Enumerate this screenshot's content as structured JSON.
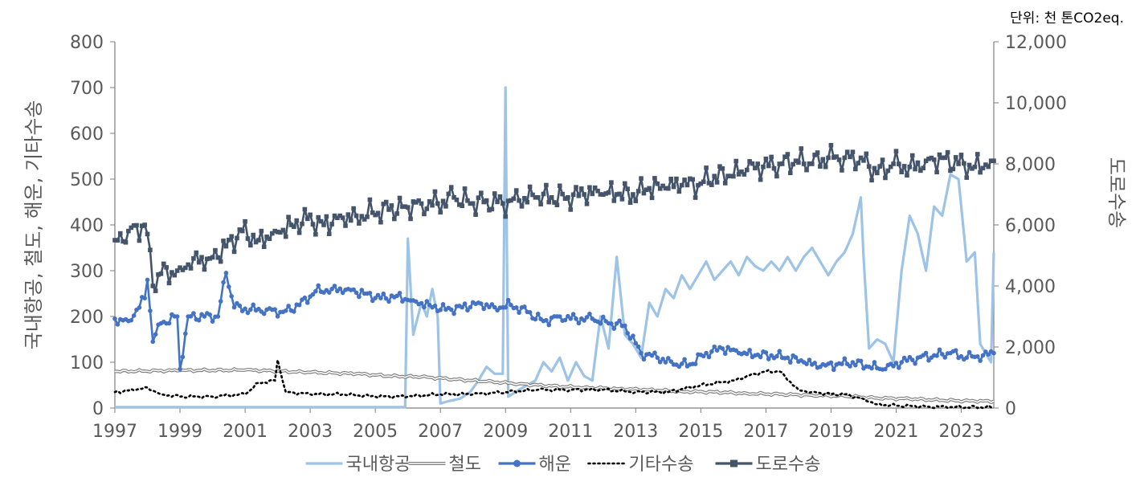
{
  "unit_note": "단위: 천 톤CO2eq.",
  "colors": {
    "domestic_aviation": "#9DC3E6",
    "rail": "#7F7F7F",
    "shipping": "#4472C4",
    "other": "#000000",
    "road": "#44546A",
    "axis_text": "#595959",
    "axis_line": "#7F7F7F"
  },
  "chart_data": {
    "type": "line",
    "x_start": "1997-01",
    "x_step": "month",
    "y_left": {
      "label": "국내항공, 철도, 해운, 기타수송",
      "range": [
        0,
        800
      ],
      "ticks": [
        "0",
        "100",
        "200",
        "300",
        "400",
        "500",
        "600",
        "700",
        "800"
      ]
    },
    "y_right": {
      "label": "도로수송",
      "range": [
        0,
        12000
      ],
      "ticks": [
        "0",
        "2,000",
        "4,000",
        "6,000",
        "8,000",
        "10,000",
        "12,000"
      ]
    },
    "x_ticks": [
      "1997",
      "1999",
      "2001",
      "2003",
      "2005",
      "2007",
      "2009",
      "2011",
      "2013",
      "2015",
      "2017",
      "2019",
      "2021",
      "2023"
    ],
    "legend_position": "bottom",
    "series": [
      {
        "key": "domestic_aviation",
        "name": "국내항공",
        "axis": "left",
        "style": "solid",
        "anchors": [
          [
            "1997-01",
            2
          ],
          [
            "2005-12",
            2
          ],
          [
            "2006-01",
            370
          ],
          [
            "2006-03",
            160
          ],
          [
            "2006-06",
            230
          ],
          [
            "2006-08",
            200
          ],
          [
            "2006-10",
            260
          ],
          [
            "2006-12",
            200
          ],
          [
            "2007-01",
            10
          ],
          [
            "2007-04",
            15
          ],
          [
            "2007-08",
            20
          ],
          [
            "2007-12",
            35
          ],
          [
            "2008-03",
            60
          ],
          [
            "2008-06",
            90
          ],
          [
            "2008-09",
            75
          ],
          [
            "2008-12",
            75
          ],
          [
            "2009-01",
            700
          ],
          [
            "2009-02",
            25
          ],
          [
            "2009-06",
            40
          ],
          [
            "2009-09",
            50
          ],
          [
            "2009-12",
            60
          ],
          [
            "2010-03",
            100
          ],
          [
            "2010-06",
            80
          ],
          [
            "2010-09",
            110
          ],
          [
            "2010-12",
            60
          ],
          [
            "2011-03",
            100
          ],
          [
            "2011-06",
            70
          ],
          [
            "2011-09",
            60
          ],
          [
            "2011-12",
            200
          ],
          [
            "2012-03",
            130
          ],
          [
            "2012-06",
            330
          ],
          [
            "2012-09",
            160
          ],
          [
            "2012-12",
            140
          ],
          [
            "2013-03",
            110
          ],
          [
            "2013-06",
            230
          ],
          [
            "2013-09",
            200
          ],
          [
            "2013-12",
            260
          ],
          [
            "2014-03",
            240
          ],
          [
            "2014-06",
            290
          ],
          [
            "2014-09",
            260
          ],
          [
            "2014-12",
            290
          ],
          [
            "2015-03",
            320
          ],
          [
            "2015-06",
            280
          ],
          [
            "2015-09",
            300
          ],
          [
            "2015-12",
            320
          ],
          [
            "2016-03",
            290
          ],
          [
            "2016-06",
            330
          ],
          [
            "2016-09",
            310
          ],
          [
            "2016-12",
            300
          ],
          [
            "2017-03",
            320
          ],
          [
            "2017-06",
            300
          ],
          [
            "2017-09",
            330
          ],
          [
            "2017-12",
            300
          ],
          [
            "2018-03",
            330
          ],
          [
            "2018-06",
            350
          ],
          [
            "2018-09",
            320
          ],
          [
            "2018-12",
            290
          ],
          [
            "2019-03",
            320
          ],
          [
            "2019-06",
            340
          ],
          [
            "2019-09",
            380
          ],
          [
            "2019-12",
            460
          ],
          [
            "2020-01",
            330
          ],
          [
            "2020-03",
            130
          ],
          [
            "2020-06",
            150
          ],
          [
            "2020-09",
            140
          ],
          [
            "2020-12",
            100
          ],
          [
            "2021-03",
            300
          ],
          [
            "2021-06",
            420
          ],
          [
            "2021-09",
            380
          ],
          [
            "2021-12",
            300
          ],
          [
            "2022-03",
            440
          ],
          [
            "2022-06",
            420
          ],
          [
            "2022-09",
            510
          ],
          [
            "2022-12",
            500
          ],
          [
            "2023-03",
            320
          ],
          [
            "2023-06",
            340
          ],
          [
            "2023-08",
            140
          ],
          [
            "2023-10",
            120
          ],
          [
            "2023-12",
            100
          ],
          [
            "2024-01",
            340
          ]
        ]
      },
      {
        "key": "rail",
        "name": "철도",
        "axis": "left",
        "style": "double",
        "anchors": [
          [
            "1997-01",
            80
          ],
          [
            "1999-01",
            82
          ],
          [
            "2001-01",
            83
          ],
          [
            "2003-01",
            78
          ],
          [
            "2004-06",
            75
          ],
          [
            "2005-06",
            70
          ],
          [
            "2006-06",
            68
          ],
          [
            "2007-06",
            63
          ],
          [
            "2008-06",
            58
          ],
          [
            "2009-06",
            53
          ],
          [
            "2010-06",
            48
          ],
          [
            "2011-06",
            45
          ],
          [
            "2012-06",
            42
          ],
          [
            "2013-06",
            40
          ],
          [
            "2014-06",
            36
          ],
          [
            "2015-06",
            35
          ],
          [
            "2016-06",
            32
          ],
          [
            "2017-06",
            30
          ],
          [
            "2018-06",
            28
          ],
          [
            "2019-06",
            26
          ],
          [
            "2020-06",
            22
          ],
          [
            "2021-06",
            20
          ],
          [
            "2022-06",
            17
          ],
          [
            "2023-06",
            15
          ],
          [
            "2024-01",
            15
          ]
        ]
      },
      {
        "key": "shipping",
        "name": "해운",
        "axis": "left",
        "style": "marker",
        "anchors": [
          [
            "1997-01",
            195
          ],
          [
            "1997-06",
            190
          ],
          [
            "1997-12",
            240
          ],
          [
            "1998-01",
            280
          ],
          [
            "1998-03",
            145
          ],
          [
            "1998-06",
            185
          ],
          [
            "1998-12",
            200
          ],
          [
            "1999-01",
            85
          ],
          [
            "1999-04",
            200
          ],
          [
            "1999-10",
            200
          ],
          [
            "2000-03",
            200
          ],
          [
            "2000-06",
            295
          ],
          [
            "2000-09",
            220
          ],
          [
            "2001-03",
            215
          ],
          [
            "2001-09",
            215
          ],
          [
            "2002-03",
            210
          ],
          [
            "2002-09",
            225
          ],
          [
            "2003-03",
            255
          ],
          [
            "2003-09",
            260
          ],
          [
            "2004-03",
            260
          ],
          [
            "2004-09",
            250
          ],
          [
            "2005-03",
            240
          ],
          [
            "2005-09",
            245
          ],
          [
            "2006-03",
            235
          ],
          [
            "2006-09",
            225
          ],
          [
            "2007-03",
            215
          ],
          [
            "2007-09",
            220
          ],
          [
            "2008-03",
            230
          ],
          [
            "2008-09",
            220
          ],
          [
            "2009-03",
            225
          ],
          [
            "2009-09",
            210
          ],
          [
            "2010-03",
            190
          ],
          [
            "2010-09",
            200
          ],
          [
            "2011-03",
            195
          ],
          [
            "2011-09",
            195
          ],
          [
            "2012-03",
            185
          ],
          [
            "2012-09",
            180
          ],
          [
            "2013-03",
            120
          ],
          [
            "2013-09",
            110
          ],
          [
            "2014-03",
            95
          ],
          [
            "2014-09",
            95
          ],
          [
            "2015-03",
            120
          ],
          [
            "2015-09",
            130
          ],
          [
            "2016-03",
            120
          ],
          [
            "2016-09",
            115
          ],
          [
            "2017-03",
            115
          ],
          [
            "2017-09",
            110
          ],
          [
            "2018-03",
            100
          ],
          [
            "2018-09",
            90
          ],
          [
            "2019-03",
            95
          ],
          [
            "2019-09",
            100
          ],
          [
            "2020-03",
            90
          ],
          [
            "2020-09",
            85
          ],
          [
            "2021-03",
            100
          ],
          [
            "2021-09",
            110
          ],
          [
            "2022-03",
            115
          ],
          [
            "2022-09",
            120
          ],
          [
            "2023-03",
            110
          ],
          [
            "2023-09",
            115
          ],
          [
            "2024-01",
            120
          ]
        ]
      },
      {
        "key": "other",
        "name": "기타수송",
        "axis": "left",
        "style": "dotted",
        "anchors": [
          [
            "1997-01",
            35
          ],
          [
            "1997-09",
            40
          ],
          [
            "1998-01",
            45
          ],
          [
            "1998-06",
            30
          ],
          [
            "1999-01",
            25
          ],
          [
            "2000-01",
            25
          ],
          [
            "2001-01",
            30
          ],
          [
            "2001-06",
            55
          ],
          [
            "2001-12",
            60
          ],
          [
            "2002-01",
            105
          ],
          [
            "2002-04",
            35
          ],
          [
            "2003-01",
            30
          ],
          [
            "2004-01",
            30
          ],
          [
            "2005-01",
            25
          ],
          [
            "2006-01",
            25
          ],
          [
            "2007-01",
            30
          ],
          [
            "2008-01",
            30
          ],
          [
            "2009-01",
            35
          ],
          [
            "2010-01",
            40
          ],
          [
            "2011-01",
            40
          ],
          [
            "2012-01",
            40
          ],
          [
            "2013-01",
            35
          ],
          [
            "2014-01",
            35
          ],
          [
            "2015-01",
            50
          ],
          [
            "2016-01",
            60
          ],
          [
            "2016-06",
            70
          ],
          [
            "2017-01",
            80
          ],
          [
            "2017-06",
            80
          ],
          [
            "2018-01",
            40
          ],
          [
            "2018-06",
            35
          ],
          [
            "2019-01",
            30
          ],
          [
            "2019-06",
            30
          ],
          [
            "2020-01",
            20
          ],
          [
            "2020-06",
            8
          ],
          [
            "2021-01",
            5
          ],
          [
            "2022-01",
            3
          ],
          [
            "2023-01",
            2
          ],
          [
            "2024-01",
            2
          ]
        ]
      },
      {
        "key": "road",
        "name": "도로수송",
        "axis": "right",
        "style": "marker-square",
        "anchors": [
          [
            "1997-01",
            5500
          ],
          [
            "1997-06",
            5800
          ],
          [
            "1997-12",
            6000
          ],
          [
            "1998-01",
            5700
          ],
          [
            "1998-03",
            4000
          ],
          [
            "1998-06",
            4400
          ],
          [
            "1998-12",
            4500
          ],
          [
            "1999-01",
            4600
          ],
          [
            "1999-06",
            4900
          ],
          [
            "1999-12",
            4900
          ],
          [
            "2000-06",
            5300
          ],
          [
            "2000-12",
            5800
          ],
          [
            "2001-06",
            5500
          ],
          [
            "2001-12",
            5800
          ],
          [
            "2002-06",
            6000
          ],
          [
            "2002-12",
            6200
          ],
          [
            "2003-06",
            6000
          ],
          [
            "2003-12",
            6300
          ],
          [
            "2004-06",
            6300
          ],
          [
            "2004-12",
            6400
          ],
          [
            "2005-06",
            6500
          ],
          [
            "2005-12",
            6600
          ],
          [
            "2006-06",
            6700
          ],
          [
            "2006-12",
            6700
          ],
          [
            "2007-06",
            6900
          ],
          [
            "2007-12",
            6700
          ],
          [
            "2008-06",
            6800
          ],
          [
            "2008-12",
            6700
          ],
          [
            "2009-06",
            6800
          ],
          [
            "2009-12",
            6900
          ],
          [
            "2010-06",
            6900
          ],
          [
            "2010-12",
            6900
          ],
          [
            "2011-06",
            7000
          ],
          [
            "2011-12",
            7000
          ],
          [
            "2012-06",
            7000
          ],
          [
            "2012-12",
            7000
          ],
          [
            "2013-06",
            7200
          ],
          [
            "2013-12",
            7200
          ],
          [
            "2014-06",
            7300
          ],
          [
            "2014-12",
            7300
          ],
          [
            "2015-06",
            7600
          ],
          [
            "2015-12",
            7600
          ],
          [
            "2016-06",
            7800
          ],
          [
            "2016-12",
            7900
          ],
          [
            "2017-06",
            8000
          ],
          [
            "2017-12",
            8100
          ],
          [
            "2018-06",
            8000
          ],
          [
            "2018-12",
            8200
          ],
          [
            "2019-06",
            8200
          ],
          [
            "2019-12",
            8200
          ],
          [
            "2020-06",
            7700
          ],
          [
            "2020-12",
            8000
          ],
          [
            "2021-06",
            7900
          ],
          [
            "2021-12",
            8100
          ],
          [
            "2022-06",
            8200
          ],
          [
            "2022-12",
            8000
          ],
          [
            "2023-06",
            7900
          ],
          [
            "2023-12",
            8100
          ],
          [
            "2024-01",
            8100
          ]
        ]
      }
    ]
  }
}
